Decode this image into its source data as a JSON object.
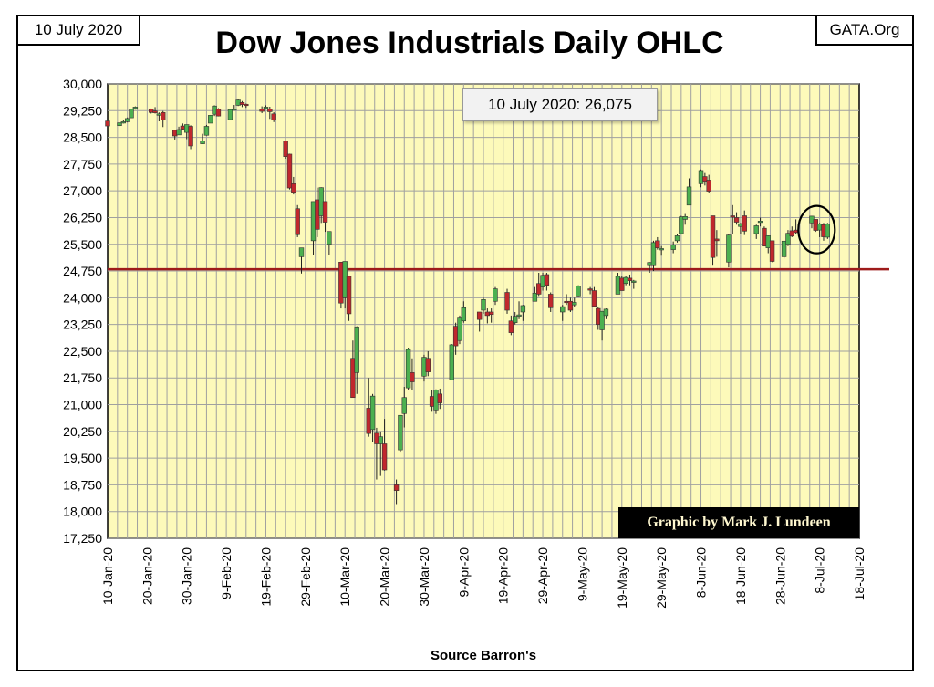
{
  "header": {
    "date_label": "10 July 2020",
    "site_label": "GATA.Org",
    "title": "Dow Jones Industrials Daily OHLC"
  },
  "annotations": {
    "close_callout": "10 July 2020: 26,075",
    "credit": "Graphic by Mark J. Lundeen",
    "source": "Source Barron's"
  },
  "colors": {
    "plot_background": "#fdfaba",
    "grid": "#a0a0a0",
    "up_candle": "#4cb050",
    "down_candle": "#c0282d",
    "reference_line": "#9e1b1b",
    "frame": "#000000"
  },
  "chart_data": {
    "type": "ohlc-candlestick",
    "title": "Dow Jones Industrials Daily OHLC",
    "ylim": [
      17250,
      30000
    ],
    "y_ticks": [
      "30,000",
      "29,250",
      "28,500",
      "27,750",
      "27,000",
      "26,250",
      "25,500",
      "24,750",
      "24,000",
      "23,250",
      "22,500",
      "21,750",
      "21,000",
      "20,250",
      "19,500",
      "18,750",
      "18,000",
      "17,250"
    ],
    "x_ticks": [
      "10-Jan-20",
      "20-Jan-20",
      "30-Jan-20",
      "9-Feb-20",
      "19-Feb-20",
      "29-Feb-20",
      "10-Mar-20",
      "20-Mar-20",
      "30-Mar-20",
      "9-Apr-20",
      "19-Apr-20",
      "29-Apr-20",
      "9-May-20",
      "19-May-20",
      "29-May-20",
      "8-Jun-20",
      "18-Jun-20",
      "28-Jun-20",
      "8-Jul-20",
      "18-Jul-20"
    ],
    "x_start": "2020-01-10",
    "x_end": "2020-07-18",
    "grid": true,
    "reference_line": 24800,
    "highlight": {
      "date": "2020-07-07",
      "label": "circled final candles"
    },
    "candles": [
      {
        "date": "2020-01-10",
        "open": 28960,
        "high": 29000,
        "low": 28800,
        "close": 28820
      },
      {
        "date": "2020-01-13",
        "open": 28830,
        "high": 28910,
        "low": 28820,
        "close": 28910
      },
      {
        "date": "2020-01-14",
        "open": 28910,
        "high": 29000,
        "low": 28890,
        "close": 28940
      },
      {
        "date": "2020-01-15",
        "open": 28940,
        "high": 29060,
        "low": 28920,
        "close": 29030
      },
      {
        "date": "2020-01-16",
        "open": 29050,
        "high": 29300,
        "low": 29050,
        "close": 29300
      },
      {
        "date": "2020-01-17",
        "open": 29310,
        "high": 29370,
        "low": 29280,
        "close": 29350
      },
      {
        "date": "2020-01-21",
        "open": 29300,
        "high": 29310,
        "low": 29170,
        "close": 29200
      },
      {
        "date": "2020-01-22",
        "open": 29240,
        "high": 29350,
        "low": 29170,
        "close": 29190
      },
      {
        "date": "2020-01-23",
        "open": 29150,
        "high": 29200,
        "low": 28950,
        "close": 29160
      },
      {
        "date": "2020-01-24",
        "open": 29200,
        "high": 29240,
        "low": 28790,
        "close": 28990
      },
      {
        "date": "2020-01-27",
        "open": 28700,
        "high": 28720,
        "low": 28440,
        "close": 28540
      },
      {
        "date": "2020-01-28",
        "open": 28570,
        "high": 28800,
        "low": 28570,
        "close": 28720
      },
      {
        "date": "2020-01-29",
        "open": 28820,
        "high": 28890,
        "low": 28700,
        "close": 28730
      },
      {
        "date": "2020-01-30",
        "open": 28640,
        "high": 28860,
        "low": 28450,
        "close": 28860
      },
      {
        "date": "2020-01-31",
        "open": 28810,
        "high": 28840,
        "low": 28170,
        "close": 28260
      },
      {
        "date": "2020-02-03",
        "open": 28320,
        "high": 28600,
        "low": 28310,
        "close": 28400
      },
      {
        "date": "2020-02-04",
        "open": 28560,
        "high": 28850,
        "low": 28550,
        "close": 28810
      },
      {
        "date": "2020-02-05",
        "open": 28900,
        "high": 29130,
        "low": 28900,
        "close": 29120
      },
      {
        "date": "2020-02-06",
        "open": 29150,
        "high": 29400,
        "low": 29100,
        "close": 29380
      },
      {
        "date": "2020-02-07",
        "open": 29290,
        "high": 29320,
        "low": 29090,
        "close": 29100
      },
      {
        "date": "2020-02-10",
        "open": 29000,
        "high": 29280,
        "low": 28980,
        "close": 29280
      },
      {
        "date": "2020-02-11",
        "open": 29300,
        "high": 29410,
        "low": 29270,
        "close": 29300
      },
      {
        "date": "2020-02-12",
        "open": 29400,
        "high": 29570,
        "low": 29380,
        "close": 29550
      },
      {
        "date": "2020-02-13",
        "open": 29480,
        "high": 29520,
        "low": 29350,
        "close": 29420
      },
      {
        "date": "2020-02-14",
        "open": 29430,
        "high": 29450,
        "low": 29330,
        "close": 29400
      },
      {
        "date": "2020-02-18",
        "open": 29300,
        "high": 29370,
        "low": 29180,
        "close": 29230
      },
      {
        "date": "2020-02-19",
        "open": 29330,
        "high": 29400,
        "low": 29310,
        "close": 29350
      },
      {
        "date": "2020-02-20",
        "open": 29300,
        "high": 29360,
        "low": 29020,
        "close": 29220
      },
      {
        "date": "2020-02-21",
        "open": 29160,
        "high": 29210,
        "low": 28930,
        "close": 28990
      },
      {
        "date": "2020-02-24",
        "open": 28400,
        "high": 28400,
        "low": 27900,
        "close": 27960
      },
      {
        "date": "2020-02-25",
        "open": 28030,
        "high": 28040,
        "low": 27040,
        "close": 27080
      },
      {
        "date": "2020-02-26",
        "open": 27200,
        "high": 27390,
        "low": 26900,
        "close": 26960
      },
      {
        "date": "2020-02-27",
        "open": 26500,
        "high": 26600,
        "low": 25700,
        "close": 25770
      },
      {
        "date": "2020-02-28",
        "open": 25150,
        "high": 25400,
        "low": 24680,
        "close": 25400
      },
      {
        "date": "2020-03-02",
        "open": 25600,
        "high": 26700,
        "low": 25200,
        "close": 26700
      },
      {
        "date": "2020-03-03",
        "open": 26750,
        "high": 27090,
        "low": 25700,
        "close": 25920
      },
      {
        "date": "2020-03-04",
        "open": 26300,
        "high": 27100,
        "low": 26100,
        "close": 27090
      },
      {
        "date": "2020-03-05",
        "open": 26700,
        "high": 26700,
        "low": 25850,
        "close": 26120
      },
      {
        "date": "2020-03-06",
        "open": 25500,
        "high": 25860,
        "low": 25200,
        "close": 25860
      },
      {
        "date": "2020-03-09",
        "open": 25000,
        "high": 25000,
        "low": 23700,
        "close": 23850
      },
      {
        "date": "2020-03-10",
        "open": 24000,
        "high": 25020,
        "low": 23700,
        "close": 25020
      },
      {
        "date": "2020-03-11",
        "open": 24600,
        "high": 24600,
        "low": 23350,
        "close": 23550
      },
      {
        "date": "2020-03-12",
        "open": 22300,
        "high": 22800,
        "low": 21200,
        "close": 21200
      },
      {
        "date": "2020-03-13",
        "open": 21900,
        "high": 23200,
        "low": 21300,
        "close": 23180
      },
      {
        "date": "2020-03-16",
        "open": 20900,
        "high": 21750,
        "low": 20100,
        "close": 20190
      },
      {
        "date": "2020-03-17",
        "open": 20300,
        "high": 21300,
        "low": 19950,
        "close": 21240
      },
      {
        "date": "2020-03-18",
        "open": 20200,
        "high": 20350,
        "low": 18900,
        "close": 19900
      },
      {
        "date": "2020-03-19",
        "open": 19900,
        "high": 20250,
        "low": 19000,
        "close": 20100
      },
      {
        "date": "2020-03-20",
        "open": 19900,
        "high": 20600,
        "low": 19150,
        "close": 19170
      },
      {
        "date": "2020-03-23",
        "open": 18750,
        "high": 18900,
        "low": 18210,
        "close": 18590
      },
      {
        "date": "2020-03-24",
        "open": 19730,
        "high": 20700,
        "low": 19680,
        "close": 20700
      },
      {
        "date": "2020-03-25",
        "open": 20750,
        "high": 21500,
        "low": 20360,
        "close": 21200
      },
      {
        "date": "2020-03-26",
        "open": 21470,
        "high": 22600,
        "low": 21400,
        "close": 22550
      },
      {
        "date": "2020-03-27",
        "open": 21900,
        "high": 22300,
        "low": 21400,
        "close": 21640
      },
      {
        "date": "2020-03-30",
        "open": 21800,
        "high": 22400,
        "low": 21650,
        "close": 22330
      },
      {
        "date": "2020-03-31",
        "open": 22300,
        "high": 22500,
        "low": 21800,
        "close": 21920
      },
      {
        "date": "2020-04-01",
        "open": 21230,
        "high": 21400,
        "low": 20800,
        "close": 20950
      },
      {
        "date": "2020-04-02",
        "open": 20850,
        "high": 21430,
        "low": 20740,
        "close": 21410
      },
      {
        "date": "2020-04-03",
        "open": 21300,
        "high": 21450,
        "low": 20880,
        "close": 21050
      },
      {
        "date": "2020-04-06",
        "open": 21700,
        "high": 22700,
        "low": 21700,
        "close": 22680
      },
      {
        "date": "2020-04-07",
        "open": 23200,
        "high": 23300,
        "low": 22400,
        "close": 22650
      },
      {
        "date": "2020-04-08",
        "open": 22800,
        "high": 23500,
        "low": 22700,
        "close": 23430
      },
      {
        "date": "2020-04-09",
        "open": 23350,
        "high": 23900,
        "low": 23300,
        "close": 23720
      },
      {
        "date": "2020-04-13",
        "open": 23600,
        "high": 23600,
        "low": 23050,
        "close": 23390
      },
      {
        "date": "2020-04-14",
        "open": 23650,
        "high": 24000,
        "low": 23550,
        "close": 23950
      },
      {
        "date": "2020-04-15",
        "open": 23600,
        "high": 23700,
        "low": 23280,
        "close": 23500
      },
      {
        "date": "2020-04-16",
        "open": 23600,
        "high": 23700,
        "low": 23300,
        "close": 23530
      },
      {
        "date": "2020-04-17",
        "open": 23900,
        "high": 24300,
        "low": 23800,
        "close": 24250
      },
      {
        "date": "2020-04-20",
        "open": 24150,
        "high": 24250,
        "low": 23550,
        "close": 23650
      },
      {
        "date": "2020-04-21",
        "open": 23350,
        "high": 23500,
        "low": 22950,
        "close": 23020
      },
      {
        "date": "2020-04-22",
        "open": 23300,
        "high": 23600,
        "low": 23250,
        "close": 23480
      },
      {
        "date": "2020-04-23",
        "open": 23500,
        "high": 23900,
        "low": 23400,
        "close": 23520
      },
      {
        "date": "2020-04-24",
        "open": 23600,
        "high": 23800,
        "low": 23350,
        "close": 23780
      },
      {
        "date": "2020-04-27",
        "open": 23900,
        "high": 24300,
        "low": 23900,
        "close": 24130
      },
      {
        "date": "2020-04-28",
        "open": 24400,
        "high": 24700,
        "low": 24050,
        "close": 24100
      },
      {
        "date": "2020-04-29",
        "open": 24300,
        "high": 24700,
        "low": 24200,
        "close": 24630
      },
      {
        "date": "2020-04-30",
        "open": 24650,
        "high": 24700,
        "low": 24200,
        "close": 24350
      },
      {
        "date": "2020-05-01",
        "open": 24100,
        "high": 24150,
        "low": 23600,
        "close": 23720
      },
      {
        "date": "2020-05-04",
        "open": 23600,
        "high": 23800,
        "low": 23350,
        "close": 23750
      },
      {
        "date": "2020-05-05",
        "open": 23900,
        "high": 24100,
        "low": 23800,
        "close": 23880
      },
      {
        "date": "2020-05-06",
        "open": 23900,
        "high": 24000,
        "low": 23600,
        "close": 23650
      },
      {
        "date": "2020-05-07",
        "open": 23800,
        "high": 24000,
        "low": 23750,
        "close": 23870
      },
      {
        "date": "2020-05-08",
        "open": 24050,
        "high": 24350,
        "low": 24040,
        "close": 24330
      },
      {
        "date": "2020-05-11",
        "open": 24250,
        "high": 24300,
        "low": 24100,
        "close": 24220
      },
      {
        "date": "2020-05-12",
        "open": 24200,
        "high": 24300,
        "low": 23750,
        "close": 23760
      },
      {
        "date": "2020-05-13",
        "open": 23700,
        "high": 23750,
        "low": 23100,
        "close": 23250
      },
      {
        "date": "2020-05-14",
        "open": 23100,
        "high": 23600,
        "low": 22800,
        "close": 23620
      },
      {
        "date": "2020-05-15",
        "open": 23500,
        "high": 23700,
        "low": 23400,
        "close": 23680
      },
      {
        "date": "2020-05-18",
        "open": 24100,
        "high": 24700,
        "low": 24100,
        "close": 24600
      },
      {
        "date": "2020-05-19",
        "open": 24550,
        "high": 24600,
        "low": 24200,
        "close": 24200
      },
      {
        "date": "2020-05-20",
        "open": 24400,
        "high": 24600,
        "low": 24350,
        "close": 24570
      },
      {
        "date": "2020-05-21",
        "open": 24550,
        "high": 24650,
        "low": 24350,
        "close": 24480
      },
      {
        "date": "2020-05-22",
        "open": 24430,
        "high": 24500,
        "low": 24250,
        "close": 24470
      },
      {
        "date": "2020-05-26",
        "open": 24900,
        "high": 25000,
        "low": 24700,
        "close": 24990
      },
      {
        "date": "2020-05-27",
        "open": 24900,
        "high": 25600,
        "low": 24750,
        "close": 25550
      },
      {
        "date": "2020-05-28",
        "open": 25600,
        "high": 25700,
        "low": 25350,
        "close": 25400
      },
      {
        "date": "2020-05-29",
        "open": 25350,
        "high": 25450,
        "low": 25180,
        "close": 25380
      },
      {
        "date": "2020-06-01",
        "open": 25350,
        "high": 25580,
        "low": 25250,
        "close": 25480
      },
      {
        "date": "2020-06-02",
        "open": 25600,
        "high": 25800,
        "low": 25550,
        "close": 25740
      },
      {
        "date": "2020-06-03",
        "open": 25800,
        "high": 26300,
        "low": 25800,
        "close": 26270
      },
      {
        "date": "2020-06-04",
        "open": 26200,
        "high": 26350,
        "low": 26050,
        "close": 26280
      },
      {
        "date": "2020-06-05",
        "open": 26600,
        "high": 27350,
        "low": 26600,
        "close": 27110
      },
      {
        "date": "2020-06-08",
        "open": 27200,
        "high": 27600,
        "low": 27100,
        "close": 27570
      },
      {
        "date": "2020-06-09",
        "open": 27400,
        "high": 27500,
        "low": 27150,
        "close": 27270
      },
      {
        "date": "2020-06-10",
        "open": 27300,
        "high": 27450,
        "low": 26950,
        "close": 26990
      },
      {
        "date": "2020-06-11",
        "open": 26300,
        "high": 26300,
        "low": 24900,
        "close": 25130
      },
      {
        "date": "2020-06-12",
        "open": 25650,
        "high": 25900,
        "low": 25150,
        "close": 25600
      },
      {
        "date": "2020-06-15",
        "open": 25000,
        "high": 25800,
        "low": 24850,
        "close": 25760
      },
      {
        "date": "2020-06-16",
        "open": 26300,
        "high": 26600,
        "low": 25800,
        "close": 26290
      },
      {
        "date": "2020-06-17",
        "open": 26250,
        "high": 26400,
        "low": 26050,
        "close": 26120
      },
      {
        "date": "2020-06-18",
        "open": 26000,
        "high": 26100,
        "low": 25800,
        "close": 26080
      },
      {
        "date": "2020-06-19",
        "open": 26300,
        "high": 26450,
        "low": 25760,
        "close": 25870
      },
      {
        "date": "2020-06-22",
        "open": 25800,
        "high": 26050,
        "low": 25650,
        "close": 26020
      },
      {
        "date": "2020-06-23",
        "open": 26150,
        "high": 26250,
        "low": 26000,
        "close": 26150
      },
      {
        "date": "2020-06-24",
        "open": 25950,
        "high": 26000,
        "low": 25450,
        "close": 25450
      },
      {
        "date": "2020-06-25",
        "open": 25400,
        "high": 25750,
        "low": 25250,
        "close": 25740
      },
      {
        "date": "2020-06-26",
        "open": 25600,
        "high": 25600,
        "low": 25000,
        "close": 25020
      },
      {
        "date": "2020-06-29",
        "open": 25150,
        "high": 25600,
        "low": 25100,
        "close": 25590
      },
      {
        "date": "2020-06-30",
        "open": 25500,
        "high": 25900,
        "low": 25450,
        "close": 25810
      },
      {
        "date": "2020-07-01",
        "open": 25880,
        "high": 26000,
        "low": 25700,
        "close": 25730
      },
      {
        "date": "2020-07-02",
        "open": 25900,
        "high": 26200,
        "low": 25800,
        "close": 25830
      },
      {
        "date": "2020-07-06",
        "open": 26100,
        "high": 26300,
        "low": 25950,
        "close": 26290
      },
      {
        "date": "2020-07-07",
        "open": 26200,
        "high": 26200,
        "low": 25850,
        "close": 25890
      },
      {
        "date": "2020-07-08",
        "open": 25900,
        "high": 26100,
        "low": 25700,
        "close": 26070
      },
      {
        "date": "2020-07-09",
        "open": 26050,
        "high": 26100,
        "low": 25600,
        "close": 25710
      },
      {
        "date": "2020-07-10",
        "open": 25700,
        "high": 26100,
        "low": 25650,
        "close": 26075
      }
    ]
  }
}
